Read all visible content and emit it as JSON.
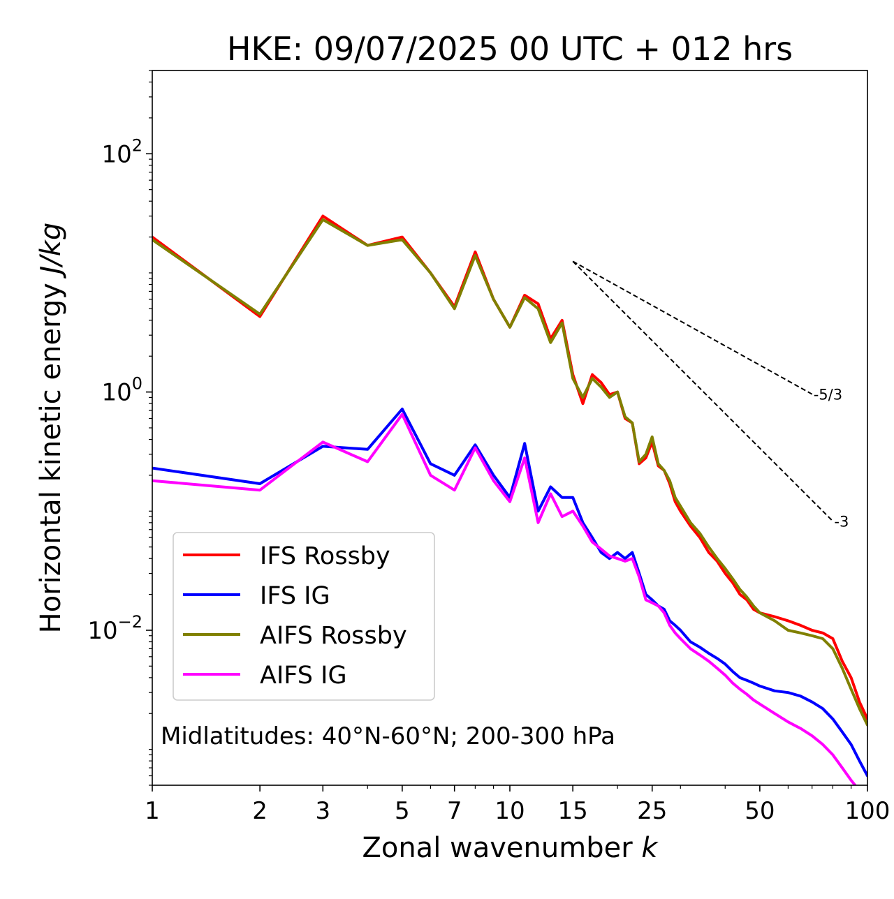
{
  "chart_data": {
    "type": "line",
    "title": "HKE: 09/07/2025 00 UTC + 012 hrs",
    "xlabel": "Zonal wavenumber",
    "xlabel_var": "k",
    "ylabel": "Horizontal kinetic energy",
    "ylabel_unit": "J/kg",
    "xscale": "log",
    "yscale": "log",
    "xlim": [
      1,
      100
    ],
    "ylim": [
      0.0005,
      500
    ],
    "x_ticks": [
      1,
      2,
      3,
      5,
      7,
      10,
      15,
      25,
      50,
      100
    ],
    "x_tick_labels": [
      "1",
      "2",
      "3",
      "5",
      "7",
      "10",
      "15",
      "25",
      "50",
      "100"
    ],
    "y_ticks": [
      {
        "value": 100,
        "base": "10",
        "exp": "2"
      },
      {
        "value": 1,
        "base": "10",
        "exp": "0"
      },
      {
        "value": 0.01,
        "base": "10",
        "exp": "−2"
      }
    ],
    "grid": false,
    "legend_position": "lower-left",
    "annotation": "Midlatitudes: 40°N-60°N; 200-300 hPa",
    "reference_lines": [
      {
        "label": "-5/3",
        "slope": -1.6667,
        "x_start": 15,
        "y_start": 12.5,
        "x_end": 70
      },
      {
        "label": "-3",
        "slope": -3,
        "x_start": 15,
        "y_start": 12.5,
        "x_end": 80
      }
    ],
    "x": [
      1,
      2,
      3,
      4,
      5,
      6,
      7,
      8,
      9,
      10,
      11,
      12,
      13,
      14,
      15,
      16,
      17,
      18,
      19,
      20,
      21,
      22,
      23,
      24,
      25,
      26,
      27,
      28,
      29,
      30,
      32,
      34,
      36,
      38,
      40,
      42,
      44,
      46,
      48,
      50,
      55,
      60,
      65,
      70,
      75,
      80,
      85,
      90,
      95,
      100
    ],
    "series": [
      {
        "name": "IFS Rossby",
        "color": "#ff0000",
        "values": [
          20,
          4.3,
          30,
          17,
          20,
          10,
          5.2,
          15,
          6,
          3.5,
          6.5,
          5.5,
          2.8,
          4,
          1.4,
          0.8,
          1.4,
          1.2,
          0.95,
          1.0,
          0.6,
          0.55,
          0.25,
          0.28,
          0.38,
          0.24,
          0.22,
          0.17,
          0.12,
          0.1,
          0.075,
          0.06,
          0.045,
          0.038,
          0.03,
          0.025,
          0.02,
          0.018,
          0.015,
          0.014,
          0.013,
          0.012,
          0.011,
          0.01,
          0.0095,
          0.0085,
          0.0055,
          0.004,
          0.0025,
          0.0018
        ]
      },
      {
        "name": "IFS IG",
        "color": "#0000ff",
        "values": [
          0.23,
          0.17,
          0.35,
          0.33,
          0.72,
          0.25,
          0.2,
          0.36,
          0.2,
          0.13,
          0.37,
          0.1,
          0.16,
          0.13,
          0.13,
          0.08,
          0.06,
          0.045,
          0.04,
          0.045,
          0.04,
          0.045,
          0.03,
          0.02,
          0.018,
          0.016,
          0.015,
          0.012,
          0.011,
          0.01,
          0.008,
          0.0072,
          0.0064,
          0.0058,
          0.0052,
          0.0045,
          0.004,
          0.0038,
          0.0036,
          0.0034,
          0.0031,
          0.003,
          0.0028,
          0.0025,
          0.0022,
          0.0018,
          0.0014,
          0.0011,
          0.0008,
          0.0006
        ]
      },
      {
        "name": "AIFS Rossby",
        "color": "#808000",
        "values": [
          19,
          4.5,
          28,
          17,
          19,
          10,
          5,
          14,
          6,
          3.5,
          6.2,
          5,
          2.6,
          3.8,
          1.3,
          0.9,
          1.3,
          1.1,
          0.9,
          1.0,
          0.62,
          0.55,
          0.26,
          0.3,
          0.42,
          0.25,
          0.22,
          0.18,
          0.13,
          0.11,
          0.08,
          0.065,
          0.05,
          0.04,
          0.033,
          0.027,
          0.022,
          0.019,
          0.016,
          0.014,
          0.012,
          0.01,
          0.0095,
          0.009,
          0.0085,
          0.007,
          0.0048,
          0.0032,
          0.0022,
          0.0016
        ]
      },
      {
        "name": "AIFS IG",
        "color": "#ff00ff",
        "values": [
          0.18,
          0.15,
          0.38,
          0.26,
          0.65,
          0.2,
          0.15,
          0.34,
          0.18,
          0.12,
          0.28,
          0.08,
          0.14,
          0.09,
          0.1,
          0.075,
          0.055,
          0.048,
          0.042,
          0.04,
          0.038,
          0.04,
          0.028,
          0.018,
          0.017,
          0.016,
          0.014,
          0.011,
          0.0095,
          0.0085,
          0.007,
          0.0062,
          0.0055,
          0.0048,
          0.0042,
          0.0036,
          0.0032,
          0.0029,
          0.0026,
          0.0024,
          0.002,
          0.0017,
          0.0015,
          0.0013,
          0.0011,
          0.0009,
          0.0007,
          0.00055,
          0.00045,
          0.0004
        ]
      }
    ]
  }
}
